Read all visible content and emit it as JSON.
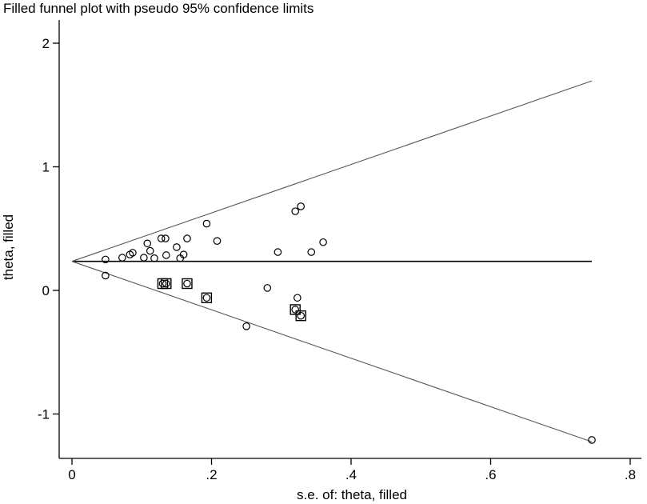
{
  "chart_data": {
    "type": "scatter",
    "title": "Filled funnel plot with pseudo 95% confidence limits",
    "xlabel": "s.e. of: theta, filled",
    "ylabel": "theta, filled",
    "xlim": [
      0,
      0.8
    ],
    "ylim": [
      -1.35,
      2.1
    ],
    "x_ticks": [
      0,
      0.2,
      0.4,
      0.6,
      0.8
    ],
    "x_tick_labels": [
      "0",
      ".2",
      ".4",
      ".6",
      ".8"
    ],
    "y_ticks": [
      -1,
      0,
      1,
      2
    ],
    "y_tick_labels": [
      "-1",
      "0",
      "1",
      "2"
    ],
    "grid": false,
    "pooled_estimate": 0.235,
    "funnel_limits": {
      "se_max": 0.745,
      "upper_at_max": 1.695,
      "lower_at_max": -1.225
    },
    "observed": {
      "x": [
        0.048,
        0.048,
        0.072,
        0.083,
        0.087,
        0.103,
        0.108,
        0.112,
        0.118,
        0.128,
        0.134,
        0.135,
        0.15,
        0.155,
        0.16,
        0.165,
        0.193,
        0.208,
        0.25,
        0.28,
        0.295,
        0.32,
        0.323,
        0.328,
        0.343,
        0.36,
        0.745
      ],
      "y": [
        0.25,
        0.12,
        0.265,
        0.29,
        0.305,
        0.265,
        0.38,
        0.32,
        0.26,
        0.42,
        0.42,
        0.285,
        0.35,
        0.26,
        0.29,
        0.42,
        0.54,
        0.4,
        -0.29,
        0.02,
        0.31,
        0.64,
        -0.06,
        0.68,
        0.31,
        0.39,
        -1.21
      ]
    },
    "filled": {
      "x": [
        0.13,
        0.135,
        0.165,
        0.193,
        0.32,
        0.328
      ],
      "y": [
        0.055,
        0.055,
        0.055,
        -0.06,
        -0.155,
        -0.205
      ]
    }
  }
}
